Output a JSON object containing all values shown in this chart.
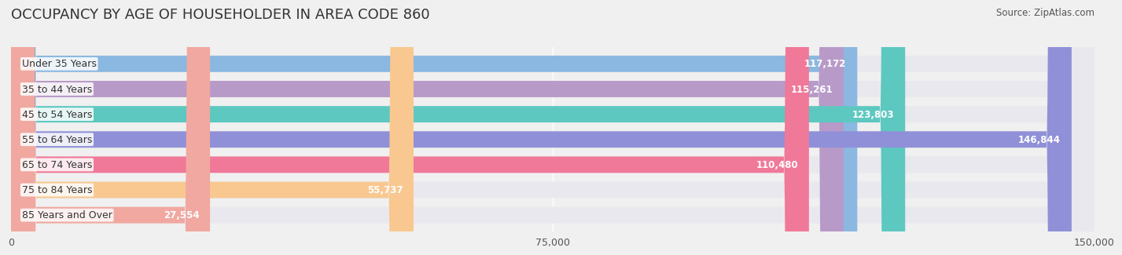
{
  "title": "OCCUPANCY BY AGE OF HOUSEHOLDER IN AREA CODE 860",
  "source": "Source: ZipAtlas.com",
  "categories": [
    "Under 35 Years",
    "35 to 44 Years",
    "45 to 54 Years",
    "55 to 64 Years",
    "65 to 74 Years",
    "75 to 84 Years",
    "85 Years and Over"
  ],
  "values": [
    117172,
    115261,
    123803,
    146844,
    110480,
    55737,
    27554
  ],
  "bar_colors": [
    "#8bb8e0",
    "#b89ac8",
    "#5dc8c0",
    "#9090d8",
    "#f07898",
    "#f8c890",
    "#f0a8a0"
  ],
  "bar_height": 0.65,
  "xlim": [
    0,
    150000
  ],
  "xticks": [
    0,
    75000,
    150000
  ],
  "xticklabels": [
    "0",
    "75,000",
    "150,000"
  ],
  "background_color": "#f0f0f0",
  "bar_bg_color": "#e8e8ee",
  "title_fontsize": 13,
  "label_fontsize": 9,
  "value_fontsize": 8.5
}
